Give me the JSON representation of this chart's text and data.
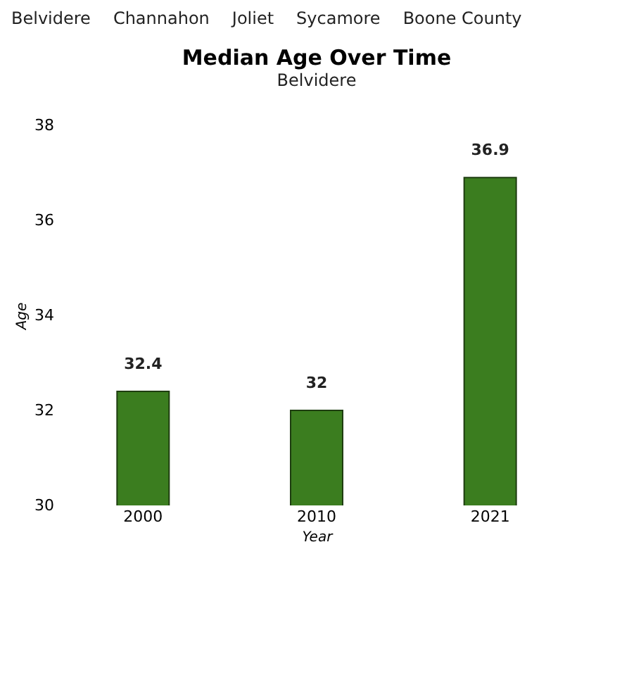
{
  "chart_data": {
    "type": "bar",
    "title": "Median Age Over Time",
    "subtitle": "Belvidere",
    "xlabel": "Year",
    "ylabel": "Age",
    "categories": [
      "2000",
      "2010",
      "2021"
    ],
    "series": [
      {
        "color": "#3b7d1f",
        "values": [
          32.4,
          32,
          36.9
        ]
      }
    ],
    "ylim": [
      30,
      38
    ],
    "yticks": [
      30,
      32,
      34,
      36,
      38
    ],
    "data_labels": true,
    "grid": false,
    "legend": false,
    "annotations": [
      "Belvidere",
      "Channahon",
      "Joliet",
      "Sycamore",
      "Boone County"
    ]
  }
}
